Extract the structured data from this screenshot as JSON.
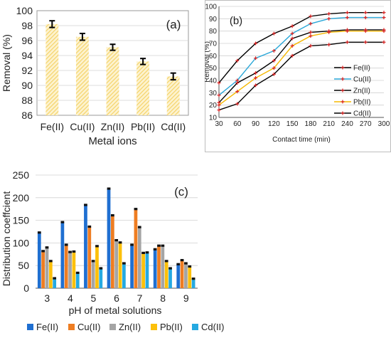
{
  "chart_data": [
    {
      "id": "a",
      "type": "bar",
      "panel_label": "(a)",
      "categories": [
        "Fe(II)",
        "Cu(II)",
        "Zn(II)",
        "Pb(II)",
        "Cd(II)"
      ],
      "values": [
        98.2,
        96.5,
        95.1,
        93.2,
        91.2
      ],
      "errors": [
        0.45,
        0.45,
        0.4,
        0.4,
        0.45
      ],
      "xlabel": "Metal ions",
      "ylabel": "Removal (%)",
      "ylim": [
        86,
        100
      ],
      "yticks": [
        "86",
        "88",
        "90",
        "92",
        "94",
        "96",
        "98",
        "100"
      ],
      "bar_color": "#f5d36a",
      "grid": true
    },
    {
      "id": "b",
      "type": "line",
      "panel_label": "(b)",
      "x": [
        30,
        60,
        90,
        120,
        150,
        180,
        210,
        240,
        270,
        300
      ],
      "xticks": [
        "30",
        "60",
        "90",
        "120",
        "150",
        "180",
        "210",
        "240",
        "270",
        "300"
      ],
      "xlabel": "Contact time (min)",
      "ylabel": "Removal (%)",
      "ylim": [
        10,
        100
      ],
      "yticks": [
        "10",
        "20",
        "30",
        "40",
        "50",
        "60",
        "70",
        "80",
        "90",
        "100"
      ],
      "grid": true,
      "series": [
        {
          "name": "Fe(II)",
          "color": "#000000",
          "values": [
            38,
            56,
            70,
            78,
            84,
            92,
            94,
            95,
            95,
            95
          ]
        },
        {
          "name": "Cu(II)",
          "color": "#2aa7d8",
          "values": [
            28,
            40,
            58,
            64,
            78,
            86,
            90,
            91,
            91,
            91
          ]
        },
        {
          "name": "Zn(II)",
          "color": "#000000",
          "values": [
            22,
            38,
            46,
            56,
            74,
            79,
            80,
            81,
            81,
            81
          ]
        },
        {
          "name": "Pb(II)",
          "color": "#f5b800",
          "values": [
            20,
            31,
            42,
            50,
            68,
            76,
            79,
            80,
            80,
            80
          ]
        },
        {
          "name": "Cd(II)",
          "color": "#000000",
          "values": [
            16,
            21,
            36,
            45,
            60,
            68,
            69,
            71,
            71,
            71
          ]
        }
      ],
      "marker_color": "#d81e1e",
      "legend": "right"
    },
    {
      "id": "c",
      "type": "bar",
      "panel_label": "(c)",
      "categories": [
        "3",
        "4",
        "5",
        "6",
        "7",
        "8",
        "9"
      ],
      "xlabel": "pH of metal solutions",
      "ylabel": "Distribution coeffcient",
      "ylim": [
        0,
        250
      ],
      "yticks": [
        "0",
        "50",
        "100",
        "150",
        "200",
        "250"
      ],
      "grid": true,
      "legend": "bottom",
      "series": [
        {
          "name": "Fe(II)",
          "color": "#1f6fd1",
          "values": [
            123,
            146,
            184,
            220,
            96,
            86,
            53
          ]
        },
        {
          "name": "Cu(II)",
          "color": "#ee7d22",
          "values": [
            82,
            96,
            136,
            161,
            175,
            94,
            62
          ]
        },
        {
          "name": "Zn(II)",
          "color": "#a5a5a5",
          "values": [
            90,
            80,
            60,
            106,
            135,
            94,
            55
          ]
        },
        {
          "name": "Pb(II)",
          "color": "#fcc00a",
          "values": [
            60,
            81,
            93,
            101,
            78,
            60,
            48
          ]
        },
        {
          "name": "Cd(II)",
          "color": "#25a9e1",
          "values": [
            22,
            34,
            44,
            55,
            79,
            44,
            21
          ]
        }
      ]
    }
  ]
}
